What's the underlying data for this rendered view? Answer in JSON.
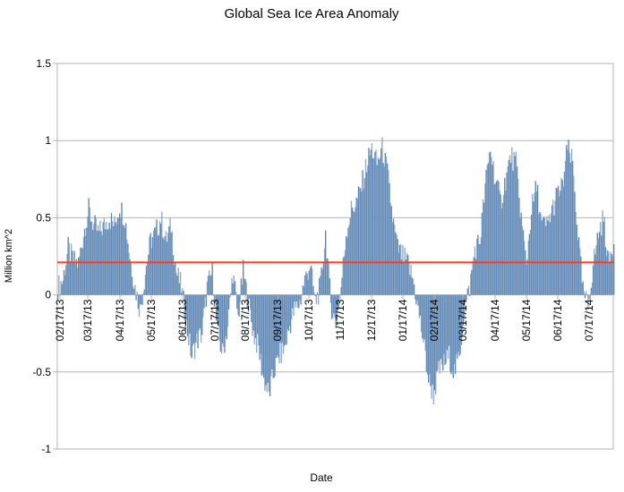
{
  "chart_data": {
    "type": "bar",
    "title": "Global Sea Ice Area Anomaly",
    "xlabel": "Date",
    "ylabel": "Million km^2",
    "ylim": [
      -1,
      1.5
    ],
    "yticks": [
      "1.5",
      "1",
      "0.5",
      "0",
      "-0.5",
      "-1"
    ],
    "ytick_values": [
      1.5,
      1,
      0.5,
      0,
      -0.5,
      -1
    ],
    "xtick_labels": [
      "02/17/13",
      "03/17/13",
      "04/17/13",
      "05/17/13",
      "06/17/13",
      "07/17/13",
      "08/17/13",
      "09/17/13",
      "10/17/13",
      "11/17/13",
      "12/17/13",
      "01/17/14",
      "02/17/14",
      "03/17/14",
      "04/17/14",
      "05/17/14",
      "06/17/14",
      "07/17/14"
    ],
    "x_start": "02/15/13",
    "x_step_days": 5,
    "values": [
      0.05,
      0.1,
      0.3,
      0.22,
      0.2,
      0.4,
      0.55,
      0.45,
      0.4,
      0.45,
      0.5,
      0.45,
      0.58,
      0.5,
      0.25,
      0.05,
      -0.1,
      0.15,
      0.35,
      0.4,
      0.5,
      0.35,
      0.45,
      0.15,
      0.05,
      -0.2,
      -0.4,
      -0.3,
      -0.25,
      0.05,
      0.15,
      -0.25,
      -0.38,
      -0.2,
      0.15,
      -0.15,
      0.15,
      -0.05,
      -0.25,
      -0.35,
      -0.55,
      -0.65,
      -0.5,
      -0.4,
      -0.35,
      -0.2,
      -0.1,
      -0.05,
      0.1,
      0.2,
      -0.05,
      0.05,
      0.4,
      -0.05,
      -0.2,
      0.05,
      0.4,
      0.55,
      0.6,
      0.7,
      0.85,
      0.95,
      0.85,
      0.95,
      0.8,
      0.5,
      0.3,
      0.25,
      0.2,
      0.1,
      -0.1,
      -0.3,
      -0.55,
      -0.65,
      -0.5,
      -0.45,
      -0.4,
      -0.5,
      -0.4,
      -0.1,
      0.05,
      0.3,
      0.35,
      0.7,
      0.95,
      0.75,
      0.6,
      0.75,
      0.9,
      0.85,
      0.5,
      0.2,
      0.55,
      0.7,
      0.45,
      0.45,
      0.55,
      0.65,
      0.7,
      0.95,
      0.85,
      0.4,
      0.02,
      -0.08,
      0.2,
      0.4,
      0.5,
      0.2,
      0.35
    ],
    "mean_line": 0.21,
    "grid": true,
    "legend": "none",
    "colors": {
      "bar": "#5b84b1",
      "bar_light": "#8aa9cb",
      "mean_line": "#ff3c14",
      "grid": "#b3b3b3"
    }
  }
}
